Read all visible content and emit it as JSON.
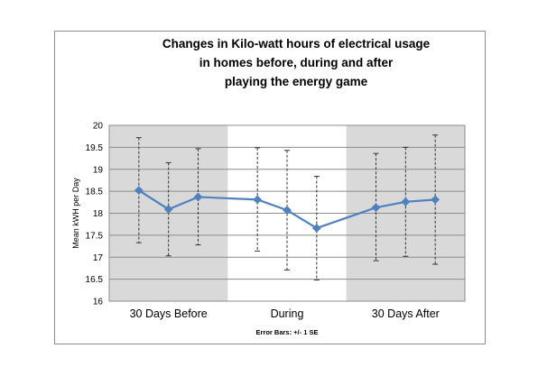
{
  "chart_data": {
    "type": "line",
    "title_lines": [
      "Changes in Kilo-watt hours of electrical usage",
      "in homes before, during and after",
      "playing the energy game"
    ],
    "ylabel": "Mean kWH per Day",
    "footnote": "Error Bars: +/- 1 SE",
    "ylim": [
      16,
      20
    ],
    "yticks": [
      "16",
      "16.5",
      "17",
      "17.5",
      "18",
      "18.5",
      "19",
      "19.5",
      "20"
    ],
    "groups": [
      {
        "label": "30 Days Before",
        "shaded": true
      },
      {
        "label": "During",
        "shaded": false
      },
      {
        "label": "30 Days After",
        "shaded": true
      }
    ],
    "points": [
      {
        "group": 0,
        "y": 18.52,
        "low": 17.33,
        "high": 19.72
      },
      {
        "group": 0,
        "y": 18.09,
        "low": 17.03,
        "high": 19.15
      },
      {
        "group": 0,
        "y": 18.37,
        "low": 17.28,
        "high": 19.47
      },
      {
        "group": 1,
        "y": 18.31,
        "low": 17.14,
        "high": 19.49
      },
      {
        "group": 1,
        "y": 18.07,
        "low": 16.71,
        "high": 19.43
      },
      {
        "group": 1,
        "y": 17.66,
        "low": 16.48,
        "high": 18.84
      },
      {
        "group": 2,
        "y": 18.13,
        "low": 16.92,
        "high": 19.36
      },
      {
        "group": 2,
        "y": 18.26,
        "low": 17.02,
        "high": 19.5
      },
      {
        "group": 2,
        "y": 18.31,
        "low": 16.84,
        "high": 19.78
      }
    ],
    "grid": true,
    "legend": "none",
    "colors": {
      "series": "#4f81bd",
      "shade": "#d9d9d9",
      "grid": "#8c8c8c",
      "error_bar": "#333333"
    }
  }
}
